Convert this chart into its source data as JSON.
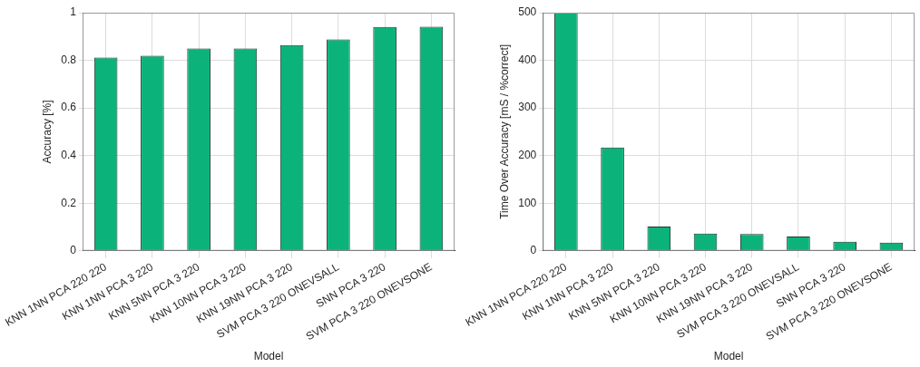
{
  "chart_data": [
    {
      "type": "bar",
      "xlabel": "Model",
      "ylabel": "Accuracy [%]",
      "categories": [
        "KNN 1NN PCA 220 220",
        "KNN 1NN PCA 3 220",
        "KNN 5NN PCA 3 220",
        "KNN 10NN PCA 3 220",
        "KNN 19NN PCA 3 220",
        "SVM PCA 3 220 ONEVSALL",
        "SNN PCA 3 220",
        "SVM PCA 3 220 ONEVSONE"
      ],
      "values": [
        0.812,
        0.819,
        0.85,
        0.85,
        0.864,
        0.888,
        0.94,
        0.941
      ],
      "color": "#0bb37b",
      "ylim": [
        0,
        1
      ],
      "yticks": [
        0,
        0.2,
        0.4,
        0.6,
        0.8,
        1
      ],
      "grid": true
    },
    {
      "type": "bar",
      "xlabel": "Model",
      "ylabel": "Time Over Accuracy [mS / %correct]",
      "categories": [
        "KNN 1NN PCA 220 220",
        "KNN 1NN PCA 3 220",
        "KNN 5NN PCA 3 220",
        "KNN 10NN PCA 3 220",
        "KNN 19NN PCA 3 220",
        "SVM PCA 3 220 ONEVSALL",
        "SNN PCA 3 220",
        "SVM PCA 3 220 ONEVSONE"
      ],
      "values": [
        500,
        217,
        51,
        36,
        35,
        30,
        19,
        17
      ],
      "color": "#0bb37b",
      "ylim": [
        0,
        500
      ],
      "yticks": [
        0,
        100,
        200,
        300,
        400,
        500
      ],
      "grid": true
    }
  ]
}
